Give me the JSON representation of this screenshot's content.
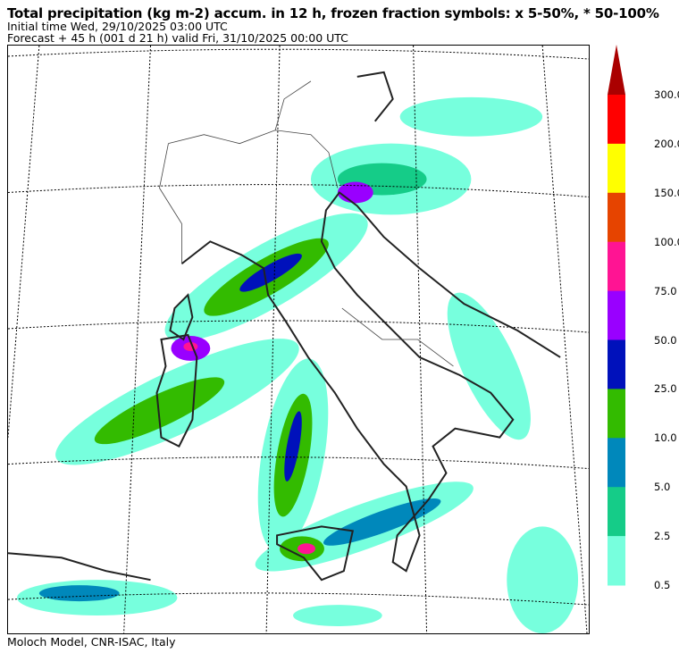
{
  "header": {
    "title": "Total precipitation (kg m-2) accum. in 12 h, frozen fraction symbols: x 5-50%, * 50-100%",
    "initial_time": "Initial time  Wed, 29/10/2025  03:00 UTC",
    "forecast": "Forecast  +  45 h  (001 d 21 h)  valid Fri, 31/10/2025 00:00 UTC"
  },
  "colorbar": {
    "labels": [
      "300.0",
      "200.0",
      "150.0",
      "100.0",
      "75.0",
      "50.0",
      "25.0",
      "10.0",
      "5.0",
      "2.5",
      "0.5"
    ],
    "colors": [
      "#ff0000",
      "#ffff00",
      "#e64400",
      "#ff1493",
      "#9900ff",
      "#0011bb",
      "#33bb00",
      "#0088bb",
      "#15cc88",
      "#77ffdd"
    ],
    "extend_color": "#aa0000"
  },
  "footer": {
    "credit": "Moloch Model, CNR-ISAC, Italy"
  }
}
